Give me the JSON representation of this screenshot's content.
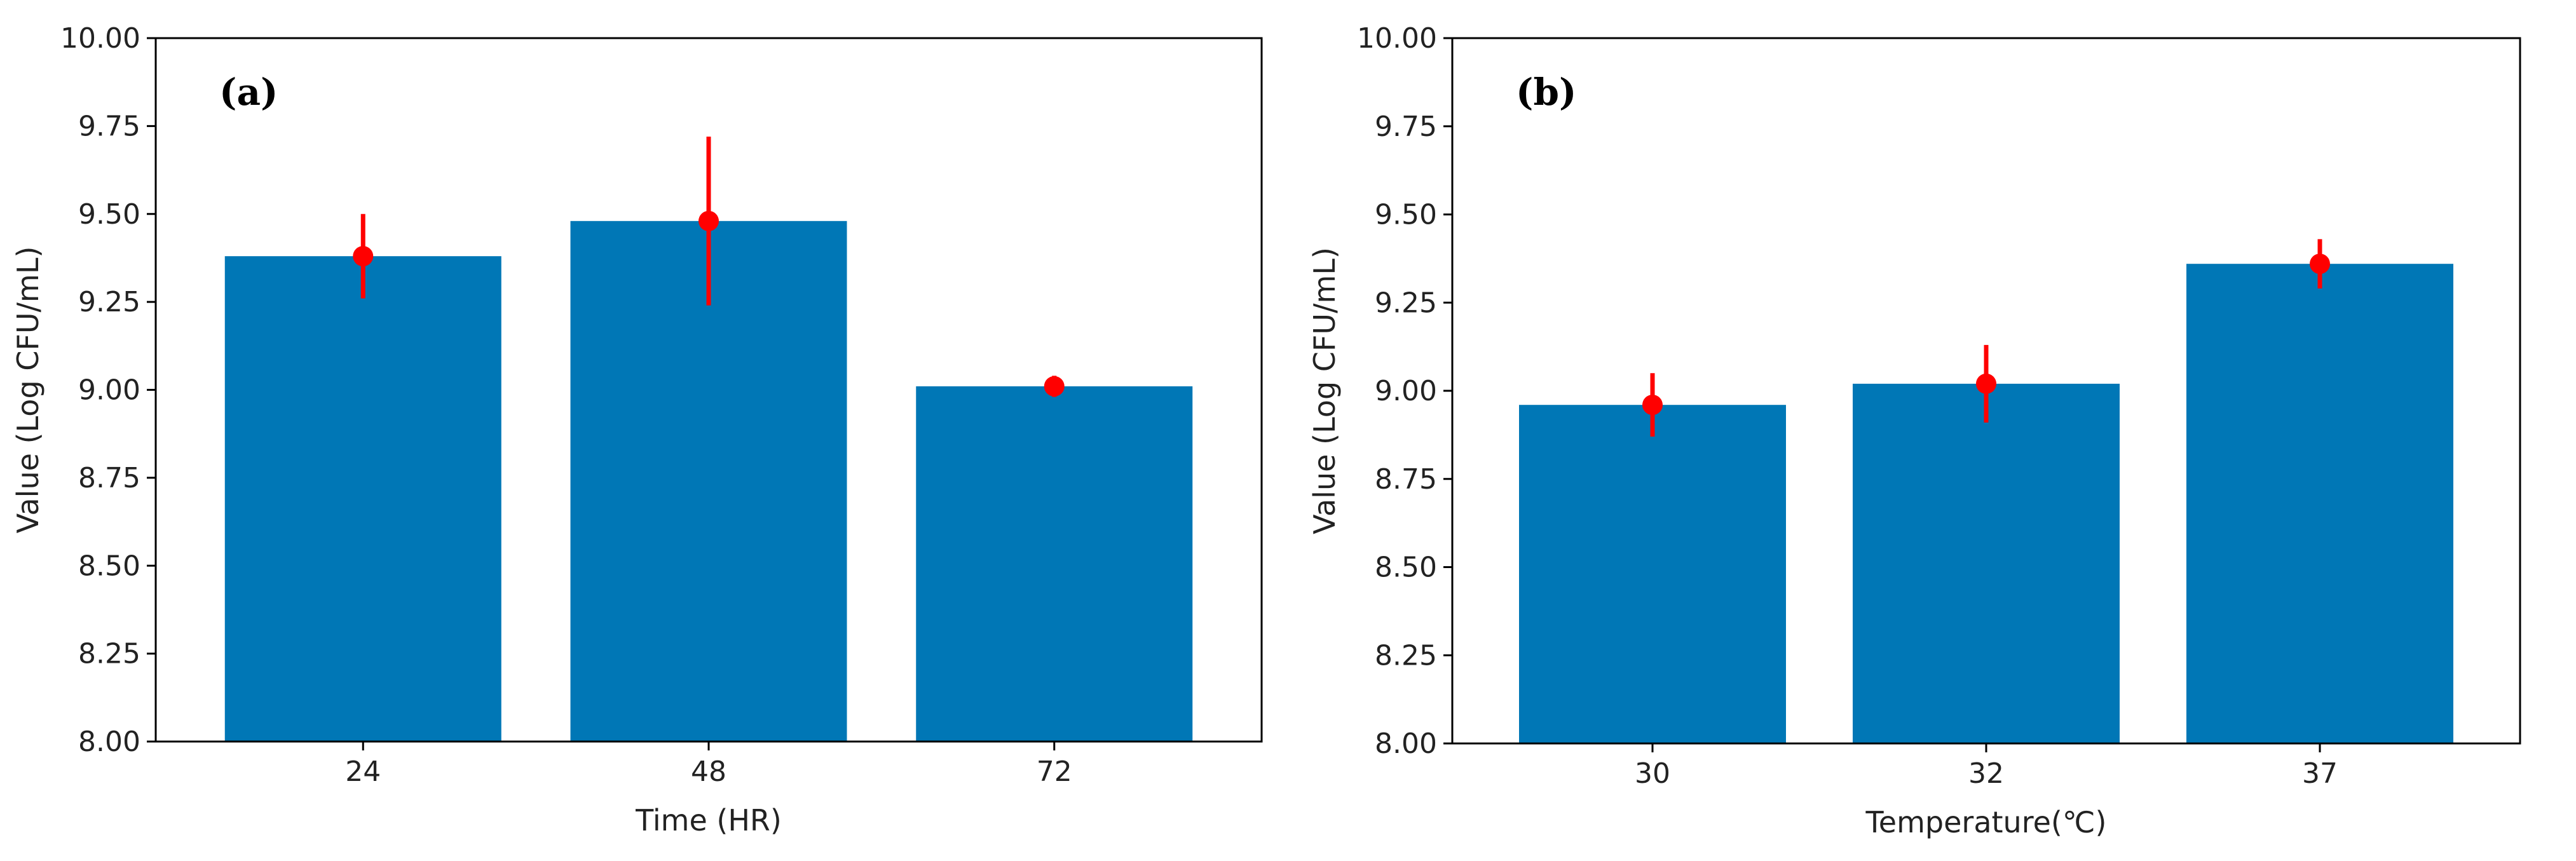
{
  "colors": {
    "bar": "#0077b6",
    "error": "#ff0000",
    "axis": "#000000"
  },
  "chart_data": [
    {
      "type": "bar",
      "panel_label": "(a)",
      "categories": [
        "24",
        "48",
        "72"
      ],
      "values": [
        9.38,
        9.48,
        9.01
      ],
      "errors": [
        0.12,
        0.24,
        0.03
      ],
      "xlabel": "Time (HR)",
      "ylabel": "Value (Log CFU/mL)",
      "ylim": [
        8.0,
        10.0
      ],
      "yticks": [
        "8.00",
        "8.25",
        "8.50",
        "8.75",
        "9.00",
        "9.25",
        "9.50",
        "9.75",
        "10.00"
      ],
      "grid": false
    },
    {
      "type": "bar",
      "panel_label": "(b)",
      "categories": [
        "30",
        "32",
        "37"
      ],
      "values": [
        8.96,
        9.02,
        9.36
      ],
      "errors": [
        0.09,
        0.11,
        0.07
      ],
      "xlabel": "Temperature(℃)",
      "ylabel": "Value (Log CFU/mL)",
      "ylim": [
        8.0,
        10.0
      ],
      "yticks": [
        "8.00",
        "8.25",
        "8.50",
        "8.75",
        "9.00",
        "9.25",
        "9.50",
        "9.75",
        "10.00"
      ],
      "grid": false
    }
  ]
}
